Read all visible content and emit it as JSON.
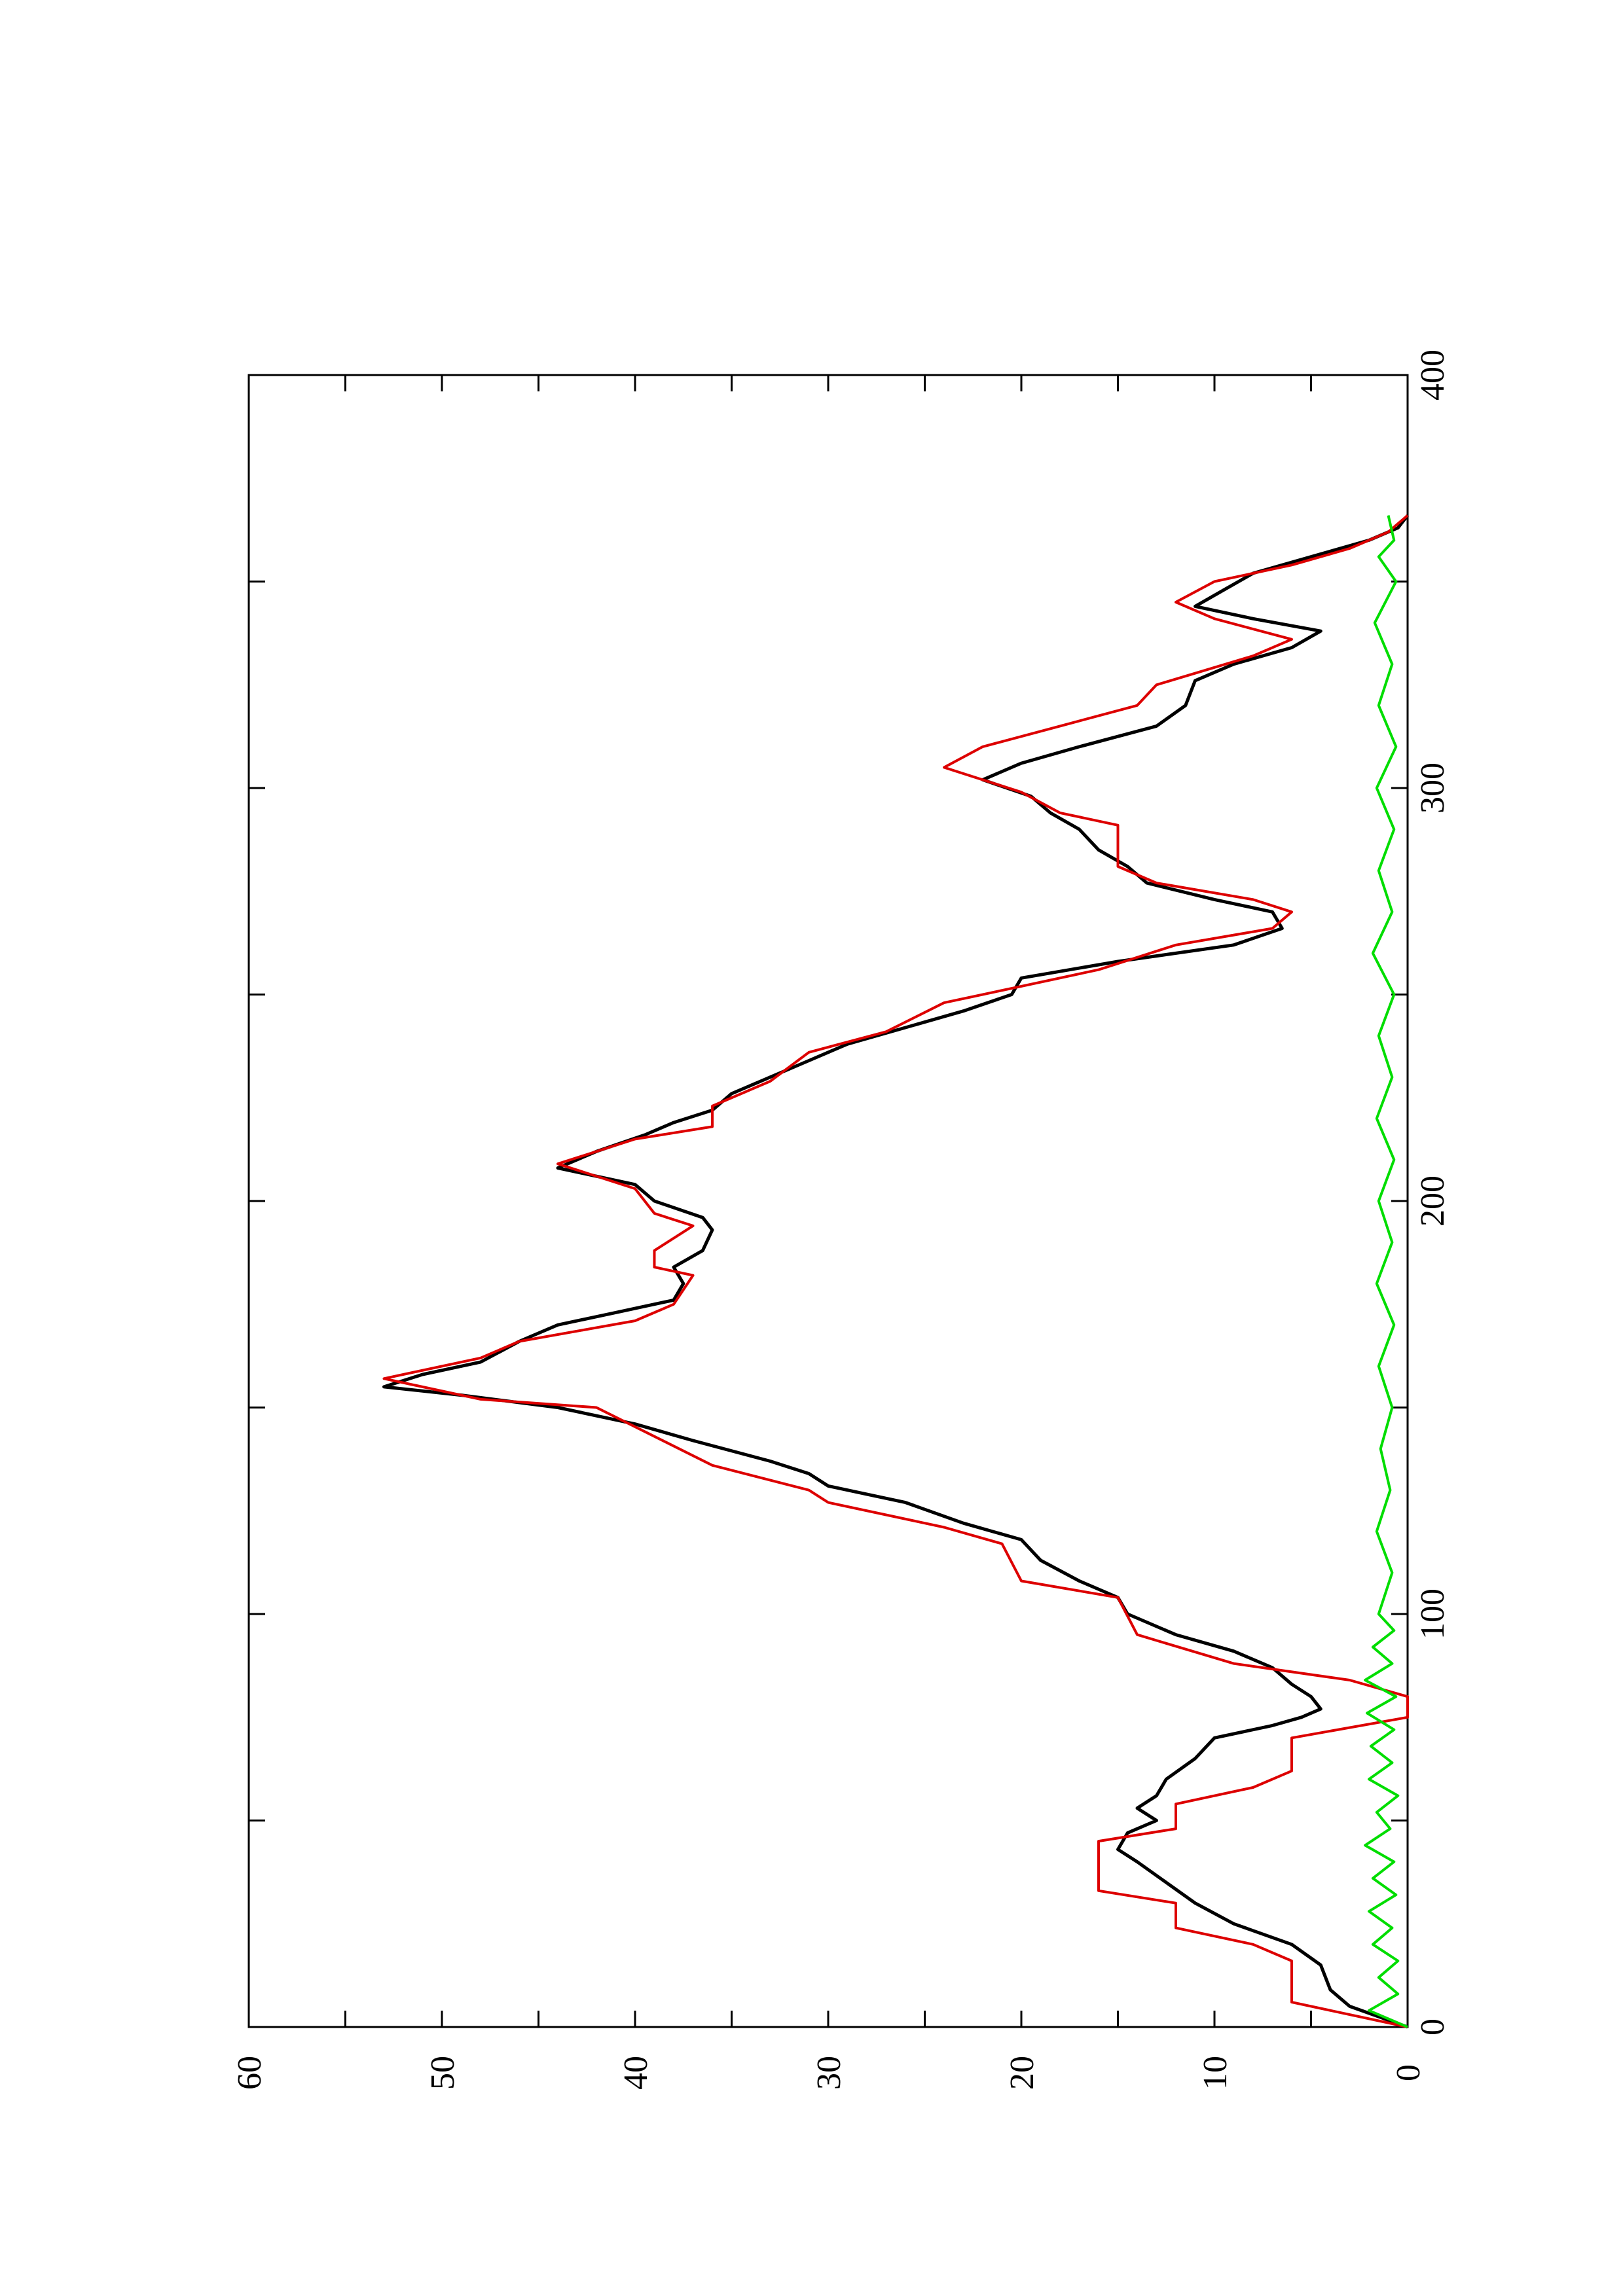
{
  "chart_data": {
    "type": "line",
    "orientation": "rotated-90",
    "title": "",
    "xlabel": "",
    "ylabel": "",
    "xlim": [
      0,
      400
    ],
    "ylim": [
      0,
      60
    ],
    "x_ticks": [
      "0",
      "100",
      "200",
      "300",
      "400"
    ],
    "y_ticks": [
      "0",
      "10",
      "20",
      "30",
      "40",
      "50",
      "60"
    ],
    "grid": false,
    "legend": "none",
    "colors": {
      "black": "#000000",
      "red": "#dd0000",
      "green": "#00dd00"
    },
    "series": [
      {
        "color": "black",
        "points": [
          [
            0,
            0
          ],
          [
            5,
            3
          ],
          [
            9,
            4
          ],
          [
            15,
            4.5
          ],
          [
            20,
            6
          ],
          [
            25,
            9
          ],
          [
            30,
            11
          ],
          [
            35,
            12.5
          ],
          [
            40,
            14
          ],
          [
            43,
            15
          ],
          [
            47,
            14.5
          ],
          [
            50,
            13
          ],
          [
            53,
            14
          ],
          [
            56,
            13
          ],
          [
            60,
            12.5
          ],
          [
            65,
            11
          ],
          [
            70,
            10
          ],
          [
            73,
            7
          ],
          [
            75,
            5.5
          ],
          [
            77,
            4.5
          ],
          [
            80,
            5
          ],
          [
            83,
            6
          ],
          [
            87,
            7
          ],
          [
            91,
            9
          ],
          [
            95,
            12
          ],
          [
            100,
            14.5
          ],
          [
            104,
            15
          ],
          [
            108,
            17
          ],
          [
            113,
            19
          ],
          [
            118,
            20
          ],
          [
            122,
            23
          ],
          [
            127,
            26
          ],
          [
            131,
            30
          ],
          [
            134,
            31
          ],
          [
            137,
            33
          ],
          [
            142,
            37
          ],
          [
            146,
            40
          ],
          [
            150,
            44
          ],
          [
            153,
            49
          ],
          [
            155,
            53
          ],
          [
            158,
            51
          ],
          [
            161,
            48
          ],
          [
            166,
            46
          ],
          [
            170,
            44
          ],
          [
            173,
            41
          ],
          [
            176,
            38
          ],
          [
            180,
            37.5
          ],
          [
            184,
            38
          ],
          [
            188,
            36.5
          ],
          [
            193,
            36
          ],
          [
            196,
            36.5
          ],
          [
            200,
            39
          ],
          [
            204,
            40
          ],
          [
            208,
            44
          ],
          [
            212,
            42
          ],
          [
            216,
            39.5
          ],
          [
            219,
            38
          ],
          [
            222,
            36
          ],
          [
            226,
            35
          ],
          [
            230,
            33
          ],
          [
            234,
            31
          ],
          [
            238,
            29
          ],
          [
            242,
            26
          ],
          [
            246,
            23
          ],
          [
            250,
            20.5
          ],
          [
            254,
            20
          ],
          [
            258,
            15
          ],
          [
            262,
            9
          ],
          [
            266,
            6.5
          ],
          [
            270,
            7
          ],
          [
            273,
            10
          ],
          [
            277,
            13.5
          ],
          [
            281,
            14.5
          ],
          [
            285,
            16
          ],
          [
            290,
            17
          ],
          [
            294,
            18.5
          ],
          [
            298,
            19.5
          ],
          [
            302,
            22
          ],
          [
            306,
            20
          ],
          [
            310,
            17
          ],
          [
            315,
            13
          ],
          [
            320,
            11.5
          ],
          [
            326,
            11
          ],
          [
            330,
            9
          ],
          [
            334,
            6
          ],
          [
            338,
            4.5
          ],
          [
            341,
            8
          ],
          [
            344,
            11
          ],
          [
            348,
            9.5
          ],
          [
            352,
            8
          ],
          [
            356,
            5
          ],
          [
            360,
            2
          ],
          [
            363,
            0.5
          ],
          [
            366,
            0
          ]
        ]
      },
      {
        "color": "red",
        "points": [
          [
            0,
            0
          ],
          [
            6,
            6
          ],
          [
            16,
            6
          ],
          [
            20,
            8
          ],
          [
            24,
            12
          ],
          [
            30,
            12
          ],
          [
            33,
            16
          ],
          [
            45,
            16
          ],
          [
            48,
            12
          ],
          [
            54,
            12
          ],
          [
            58,
            8
          ],
          [
            62,
            6
          ],
          [
            70,
            6
          ],
          [
            75,
            0
          ],
          [
            80,
            0
          ],
          [
            84,
            3
          ],
          [
            88,
            9
          ],
          [
            95,
            14
          ],
          [
            104,
            15
          ],
          [
            108,
            20
          ],
          [
            117,
            21
          ],
          [
            121,
            24
          ],
          [
            127,
            30
          ],
          [
            130,
            31
          ],
          [
            136,
            36
          ],
          [
            150,
            42
          ],
          [
            152,
            48
          ],
          [
            157,
            53
          ],
          [
            162,
            48
          ],
          [
            166,
            46
          ],
          [
            171,
            40
          ],
          [
            175,
            38
          ],
          [
            182,
            37
          ],
          [
            184,
            39
          ],
          [
            188,
            39
          ],
          [
            194,
            37
          ],
          [
            197,
            39
          ],
          [
            203,
            40
          ],
          [
            209,
            44
          ],
          [
            215,
            40
          ],
          [
            218,
            36
          ],
          [
            223,
            36
          ],
          [
            229,
            33
          ],
          [
            236,
            31
          ],
          [
            241,
            27
          ],
          [
            248,
            24
          ],
          [
            252,
            20
          ],
          [
            256,
            16
          ],
          [
            262,
            12
          ],
          [
            266,
            7
          ],
          [
            270,
            6
          ],
          [
            273,
            8
          ],
          [
            277,
            13
          ],
          [
            281,
            15
          ],
          [
            291,
            15
          ],
          [
            294,
            18
          ],
          [
            299,
            20
          ],
          [
            305,
            24
          ],
          [
            310,
            22
          ],
          [
            315,
            18
          ],
          [
            320,
            14
          ],
          [
            325,
            13
          ],
          [
            332,
            8
          ],
          [
            336,
            6
          ],
          [
            341,
            10
          ],
          [
            345,
            12
          ],
          [
            350,
            10
          ],
          [
            354,
            6
          ],
          [
            358,
            3
          ],
          [
            362,
            1
          ],
          [
            366,
            0
          ]
        ]
      },
      {
        "color": "green",
        "points": [
          [
            0,
            0
          ],
          [
            4,
            2
          ],
          [
            8,
            0.5
          ],
          [
            12,
            1.5
          ],
          [
            16,
            0.5
          ],
          [
            20,
            1.8
          ],
          [
            24,
            0.8
          ],
          [
            28,
            2
          ],
          [
            32,
            0.6
          ],
          [
            36,
            1.8
          ],
          [
            40,
            0.7
          ],
          [
            44,
            2.2
          ],
          [
            48,
            0.9
          ],
          [
            52,
            1.6
          ],
          [
            56,
            0.5
          ],
          [
            60,
            2
          ],
          [
            64,
            0.8
          ],
          [
            68,
            1.9
          ],
          [
            72,
            0.7
          ],
          [
            76,
            2.1
          ],
          [
            80,
            0.6
          ],
          [
            84,
            2.2
          ],
          [
            88,
            0.8
          ],
          [
            92,
            1.8
          ],
          [
            96,
            0.7
          ],
          [
            100,
            1.5
          ],
          [
            110,
            0.8
          ],
          [
            120,
            1.6
          ],
          [
            130,
            0.9
          ],
          [
            140,
            1.4
          ],
          [
            150,
            0.8
          ],
          [
            160,
            1.5
          ],
          [
            170,
            0.7
          ],
          [
            180,
            1.6
          ],
          [
            190,
            0.8
          ],
          [
            200,
            1.5
          ],
          [
            210,
            0.7
          ],
          [
            220,
            1.6
          ],
          [
            230,
            0.8
          ],
          [
            240,
            1.5
          ],
          [
            250,
            0.7
          ],
          [
            260,
            1.8
          ],
          [
            270,
            0.8
          ],
          [
            280,
            1.5
          ],
          [
            290,
            0.7
          ],
          [
            300,
            1.6
          ],
          [
            310,
            0.6
          ],
          [
            320,
            1.5
          ],
          [
            330,
            0.8
          ],
          [
            340,
            1.7
          ],
          [
            350,
            0.6
          ],
          [
            356,
            1.5
          ],
          [
            360,
            0.7
          ],
          [
            366,
            1
          ]
        ]
      }
    ]
  }
}
